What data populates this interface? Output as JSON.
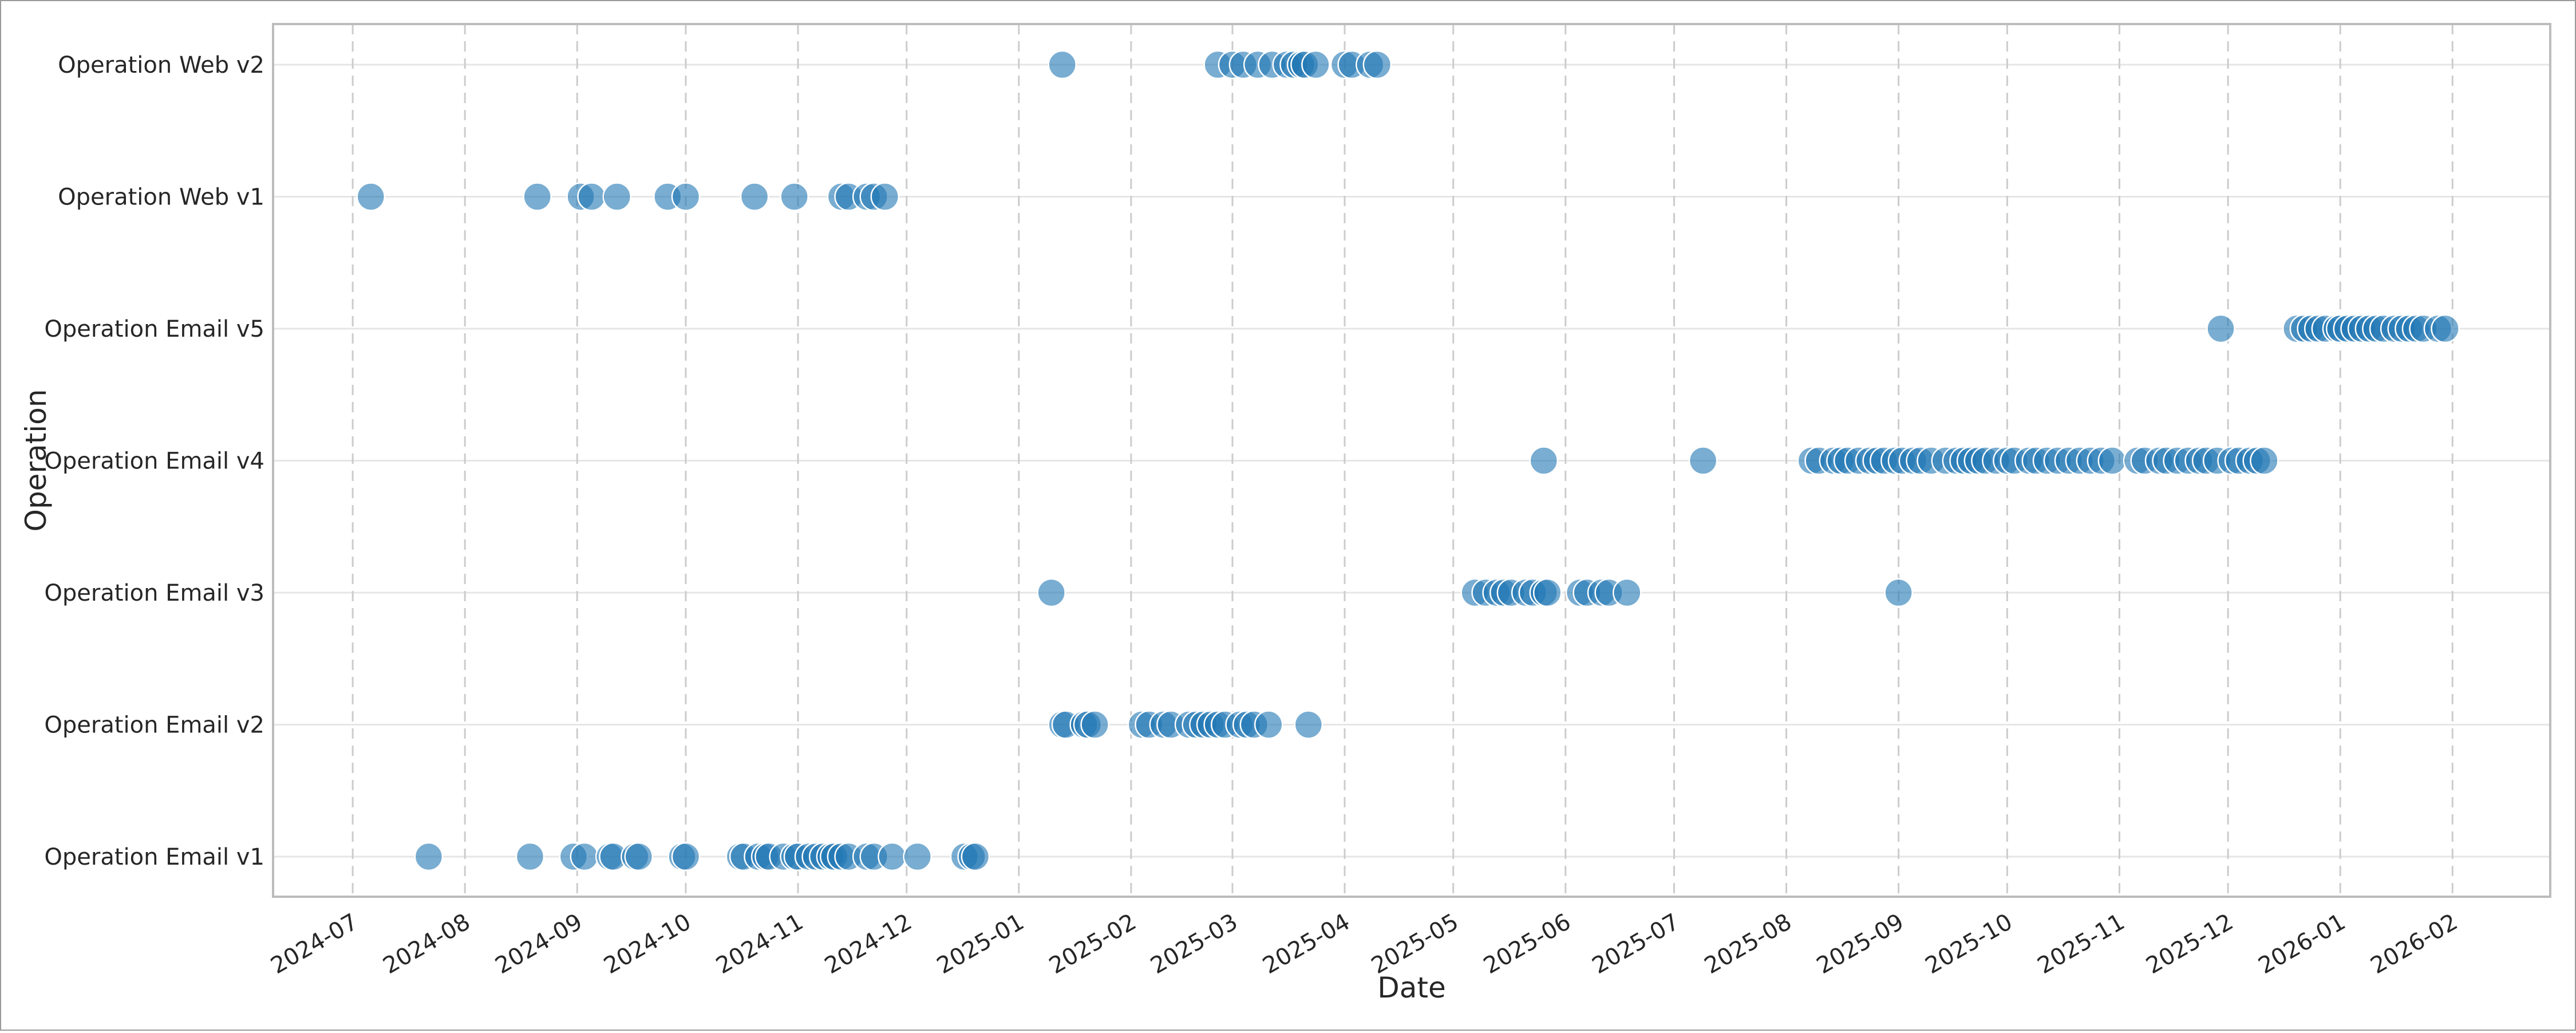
{
  "chart_data": {
    "type": "scatter",
    "xlabel": "Date",
    "ylabel": "Operation",
    "categories": [
      "Operation Email v1",
      "Operation Email v2",
      "Operation Email v3",
      "Operation Email v4",
      "Operation Email v5",
      "Operation Web v1",
      "Operation Web v2"
    ],
    "x_ticks": [
      "2024-07",
      "2024-08",
      "2024-09",
      "2024-10",
      "2024-11",
      "2024-12",
      "2025-01",
      "2025-02",
      "2025-03",
      "2025-04",
      "2025-05",
      "2025-06",
      "2025-07",
      "2025-08",
      "2025-09",
      "2025-10",
      "2025-11",
      "2025-12",
      "2026-01",
      "2026-02"
    ],
    "xlim": [
      "2024-06-09",
      "2026-02-28"
    ],
    "grid": true,
    "marker_color": "#1f77b4",
    "series": [
      {
        "category": "Operation Email v1",
        "dates": [
          "2024-07-22",
          "2024-08-19",
          "2024-08-31",
          "2024-09-03",
          "2024-09-10",
          "2024-09-11",
          "2024-09-17",
          "2024-09-18",
          "2024-09-30",
          "2024-10-01",
          "2024-10-16",
          "2024-10-17",
          "2024-10-21",
          "2024-10-23",
          "2024-10-24",
          "2024-10-28",
          "2024-10-31",
          "2024-11-01",
          "2024-11-04",
          "2024-11-06",
          "2024-11-08",
          "2024-11-10",
          "2024-11-11",
          "2024-11-13",
          "2024-11-15",
          "2024-11-20",
          "2024-11-22",
          "2024-11-27",
          "2024-12-04",
          "2024-12-17",
          "2024-12-19",
          "2024-12-20"
        ]
      },
      {
        "category": "Operation Email v2",
        "dates": [
          "2025-01-13",
          "2025-01-14",
          "2025-01-19",
          "2025-01-20",
          "2025-01-22",
          "2025-02-04",
          "2025-02-06",
          "2025-02-10",
          "2025-02-12",
          "2025-02-17",
          "2025-02-19",
          "2025-02-21",
          "2025-02-23",
          "2025-02-25",
          "2025-02-27",
          "2025-03-03",
          "2025-03-05",
          "2025-03-07",
          "2025-03-11",
          "2025-03-22"
        ]
      },
      {
        "category": "Operation Email v3",
        "dates": [
          "2025-01-10",
          "2025-05-07",
          "2025-05-10",
          "2025-05-13",
          "2025-05-15",
          "2025-05-17",
          "2025-05-21",
          "2025-05-23",
          "2025-05-26",
          "2025-05-27",
          "2025-06-05",
          "2025-06-07",
          "2025-06-11",
          "2025-06-13",
          "2025-06-18",
          "2025-09-01"
        ]
      },
      {
        "category": "Operation Email v4",
        "dates": [
          "2025-05-26",
          "2025-07-09",
          "2025-08-08",
          "2025-08-10",
          "2025-08-14",
          "2025-08-16",
          "2025-08-18",
          "2025-08-21",
          "2025-08-24",
          "2025-08-26",
          "2025-08-28",
          "2025-08-31",
          "2025-09-02",
          "2025-09-05",
          "2025-09-07",
          "2025-09-10",
          "2025-09-14",
          "2025-09-17",
          "2025-09-19",
          "2025-09-21",
          "2025-09-23",
          "2025-09-25",
          "2025-09-28",
          "2025-10-01",
          "2025-10-03",
          "2025-10-07",
          "2025-10-09",
          "2025-10-12",
          "2025-10-15",
          "2025-10-18",
          "2025-10-21",
          "2025-10-24",
          "2025-10-27",
          "2025-10-30",
          "2025-11-06",
          "2025-11-08",
          "2025-11-12",
          "2025-11-14",
          "2025-11-17",
          "2025-11-20",
          "2025-11-23",
          "2025-11-25",
          "2025-11-28",
          "2025-12-02",
          "2025-12-04",
          "2025-12-07",
          "2025-12-09",
          "2025-12-11"
        ]
      },
      {
        "category": "Operation Email v5",
        "dates": [
          "2025-11-29",
          "2025-12-20",
          "2025-12-22",
          "2025-12-24",
          "2025-12-26",
          "2025-12-28",
          "2025-12-31",
          "2026-01-01",
          "2026-01-03",
          "2026-01-05",
          "2026-01-07",
          "2026-01-09",
          "2026-01-11",
          "2026-01-13",
          "2026-01-16",
          "2026-01-18",
          "2026-01-20",
          "2026-01-22",
          "2026-01-24",
          "2026-01-28",
          "2026-01-30"
        ]
      },
      {
        "category": "Operation Web v1",
        "dates": [
          "2024-07-06",
          "2024-08-21",
          "2024-09-02",
          "2024-09-05",
          "2024-09-12",
          "2024-09-26",
          "2024-10-01",
          "2024-10-20",
          "2024-10-31",
          "2024-11-13",
          "2024-11-15",
          "2024-11-20",
          "2024-11-22",
          "2024-11-25"
        ]
      },
      {
        "category": "Operation Web v2",
        "dates": [
          "2025-01-13",
          "2025-02-25",
          "2025-03-01",
          "2025-03-04",
          "2025-03-08",
          "2025-03-12",
          "2025-03-16",
          "2025-03-18",
          "2025-03-20",
          "2025-03-21",
          "2025-03-24",
          "2025-04-01",
          "2025-04-03",
          "2025-04-08",
          "2025-04-10"
        ]
      }
    ]
  }
}
